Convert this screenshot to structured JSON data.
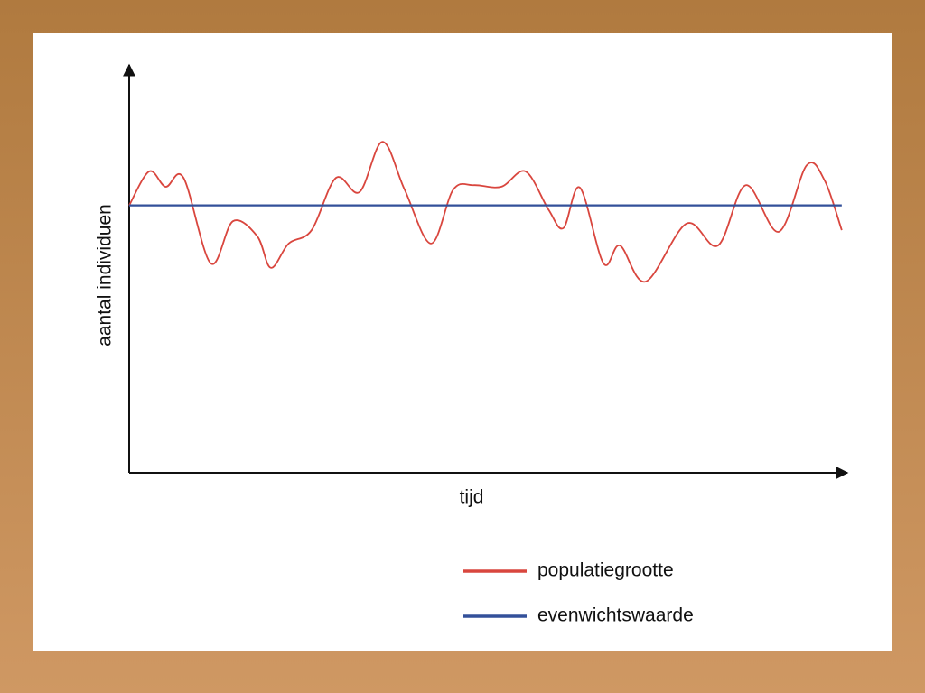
{
  "chart_data": {
    "type": "line",
    "y_label": "aantal individuen",
    "x_label": "tijd",
    "xlim": [
      0,
      100
    ],
    "ylim": [
      0,
      100
    ],
    "x": [
      0,
      2.8,
      5.1,
      7.6,
      11.4,
      14.5,
      17.9,
      19.8,
      22.3,
      25.5,
      28.9,
      32.2,
      35.4,
      38.5,
      42.2,
      45.3,
      48.2,
      52.0,
      55.4,
      58.6,
      60.7,
      63.0,
      66.3,
      68.6,
      72.2,
      77.9,
      82.3,
      86.2,
      90.8,
      94.7,
      97.2,
      99.6
    ],
    "series": [
      {
        "name": "populatiegrootte",
        "color": "#d9463e",
        "values": [
          66,
          74.4,
          70.6,
          72.8,
          51.7,
          62.1,
          58.4,
          50.6,
          56.6,
          59.9,
          72.8,
          69.3,
          81.7,
          69.9,
          56.6,
          69.9,
          71.0,
          70.6,
          74.4,
          65.0,
          60.4,
          70.4,
          51.7,
          56.1,
          47.2,
          61.5,
          56.1,
          71.0,
          59.5,
          75.9,
          72.2,
          59.9
        ]
      },
      {
        "name": "evenwichtswaarde",
        "color": "#33509a",
        "values": [
          66,
          66,
          66,
          66,
          66,
          66,
          66,
          66,
          66,
          66,
          66,
          66,
          66,
          66,
          66,
          66,
          66,
          66,
          66,
          66,
          66,
          66,
          66,
          66,
          66,
          66,
          66,
          66,
          66,
          66,
          66,
          66
        ]
      }
    ]
  }
}
